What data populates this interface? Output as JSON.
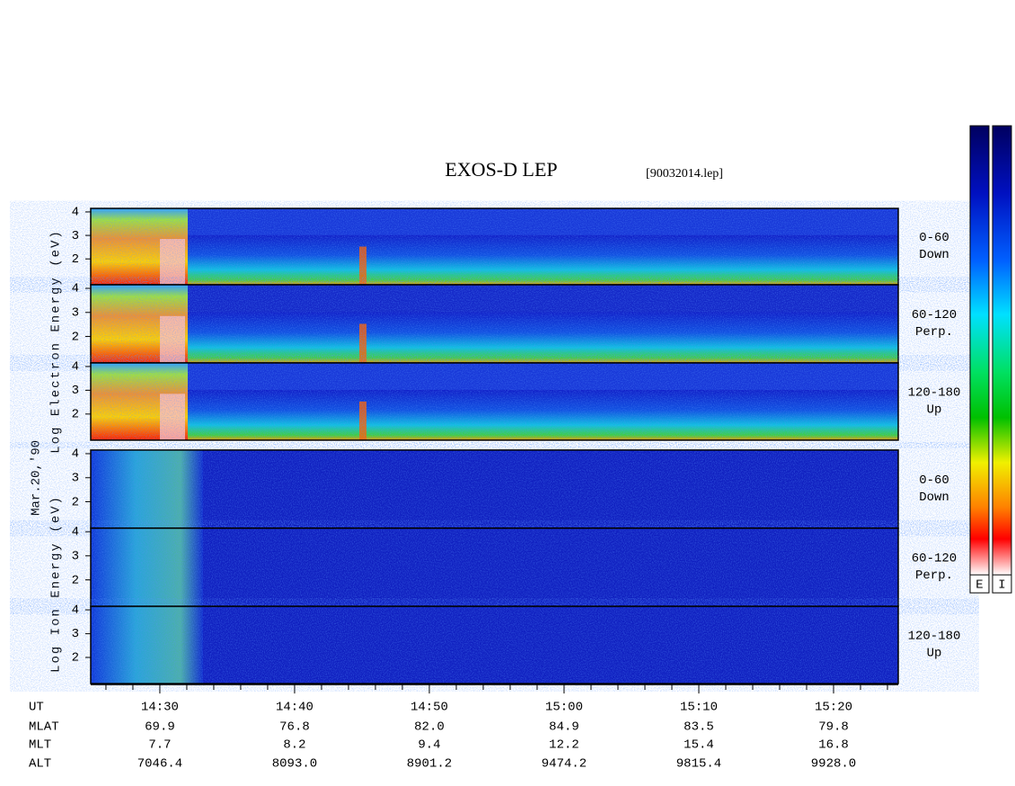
{
  "chart_data": {
    "type": "spectrogram",
    "title": "EXOS-D LEP",
    "file": "[90032014.lep]",
    "date": "Mar.20,'90",
    "xlim": [
      24.87,
      84.8
    ],
    "xticks": [
      {
        "value": 30,
        "label": "14:30"
      },
      {
        "value": 40,
        "label": "14:40"
      },
      {
        "value": 50,
        "label": "14:50"
      },
      {
        "value": 60,
        "label": "15:00"
      },
      {
        "value": 70,
        "label": "15:10"
      },
      {
        "value": 80,
        "label": "15:20"
      }
    ],
    "xminorticks": [
      26,
      28,
      32,
      34,
      36,
      38,
      42,
      44,
      46,
      48,
      52,
      54,
      56,
      58,
      62,
      64,
      66,
      68,
      72,
      74,
      76,
      78,
      82,
      84
    ],
    "ylim": [
      0.9,
      4.15
    ],
    "yticks": [
      2,
      3,
      4
    ],
    "groups": [
      {
        "ylabel": "Log Electron Energy (eV)",
        "panels": [
          {
            "angle": "0-60",
            "direction": "Down"
          },
          {
            "angle": "60-120",
            "direction": "Perp."
          },
          {
            "angle": "120-180",
            "direction": "Up"
          }
        ]
      },
      {
        "ylabel": "Log Ion Energy (eV)",
        "panels": [
          {
            "angle": "0-60",
            "direction": "Down"
          },
          {
            "angle": "60-120",
            "direction": "Perp."
          },
          {
            "angle": "120-180",
            "direction": "Up"
          }
        ]
      }
    ],
    "colorbars": [
      "E",
      "I"
    ],
    "orbit": {
      "rows": [
        {
          "name": "UT",
          "values": [
            "14:30",
            "14:40",
            "14:50",
            "15:00",
            "15:10",
            "15:20"
          ]
        },
        {
          "name": "MLAT",
          "values": [
            "69.9",
            "76.8",
            "82.0",
            "84.9",
            "83.5",
            "79.8"
          ]
        },
        {
          "name": "MLT",
          "values": [
            "7.7",
            "8.2",
            "9.4",
            "12.2",
            "15.4",
            "16.8"
          ]
        },
        {
          "name": "ALT",
          "values": [
            "7046.4",
            "8093.0",
            "8901.2",
            "9474.2",
            "9815.4",
            "9928.0"
          ]
        }
      ]
    }
  }
}
